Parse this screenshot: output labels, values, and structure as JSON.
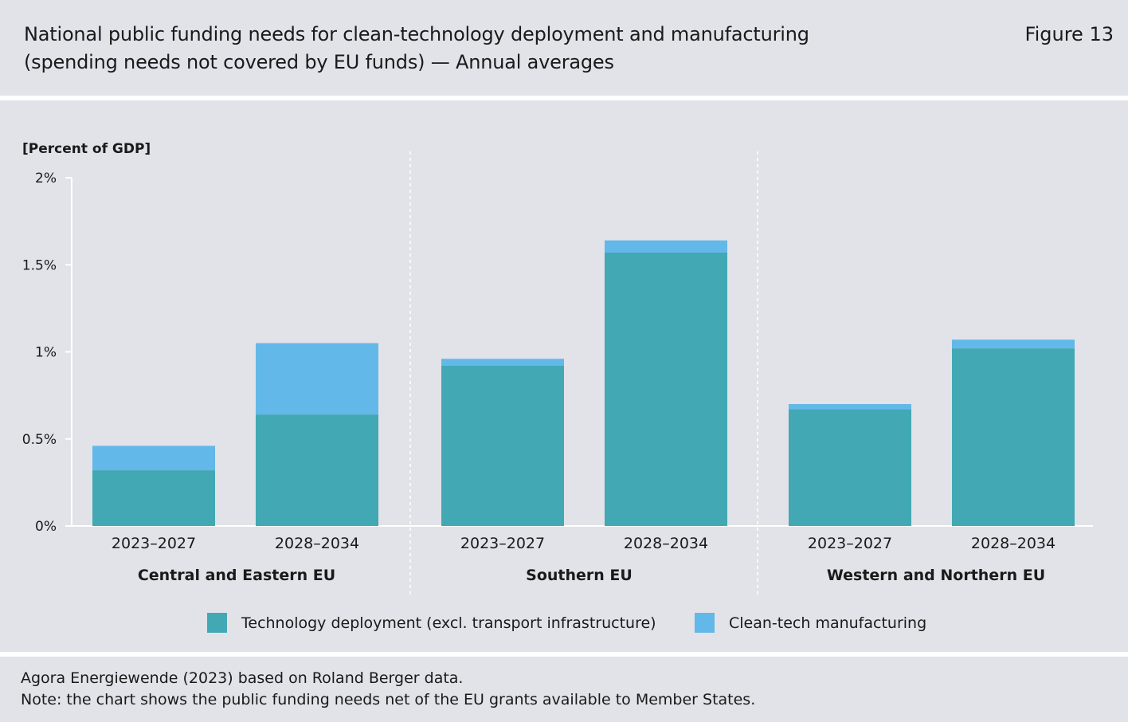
{
  "header": {
    "title_line1": "National public funding needs for clean-technology deployment and manufacturing",
    "title_line2": "(spending needs not covered by EU funds) — Annual averages",
    "figure_label": "Figure 13"
  },
  "footer": {
    "source": "Agora Energiewende (2023) based on Roland Berger data.",
    "note": "Note: the chart shows the public funding needs net of the EU grants available to Member States."
  },
  "colors": {
    "panel_bg": "#e2e2e9",
    "deployment": "#41a8b4",
    "manufacturing": "#62b8e8"
  },
  "chart_data": {
    "type": "bar",
    "stacked": true,
    "ylabel": "[Percent of GDP]",
    "ylim": [
      0,
      2
    ],
    "yticks": [
      {
        "value": 0,
        "label": "0%"
      },
      {
        "value": 0.5,
        "label": "0.5%"
      },
      {
        "value": 1,
        "label": "1%"
      },
      {
        "value": 1.5,
        "label": "1.5%"
      },
      {
        "value": 2,
        "label": "2%"
      }
    ],
    "groups": [
      {
        "name": "Central and Eastern EU",
        "categories": [
          "2023–2027",
          "2028–2034"
        ]
      },
      {
        "name": "Southern EU",
        "categories": [
          "2023–2027",
          "2028–2034"
        ]
      },
      {
        "name": "Western and Northern EU",
        "categories": [
          "2023–2027",
          "2028–2034"
        ]
      }
    ],
    "series": [
      {
        "name": "Technology deployment (excl. transport infrastructure)",
        "color": "#41a8b4",
        "values": [
          0.32,
          0.64,
          0.92,
          1.57,
          0.67,
          1.02
        ]
      },
      {
        "name": "Clean-tech manufacturing",
        "color": "#62b8e8",
        "values": [
          0.14,
          0.41,
          0.04,
          0.07,
          0.03,
          0.05
        ]
      }
    ],
    "grid": false,
    "legend_position": "bottom"
  }
}
